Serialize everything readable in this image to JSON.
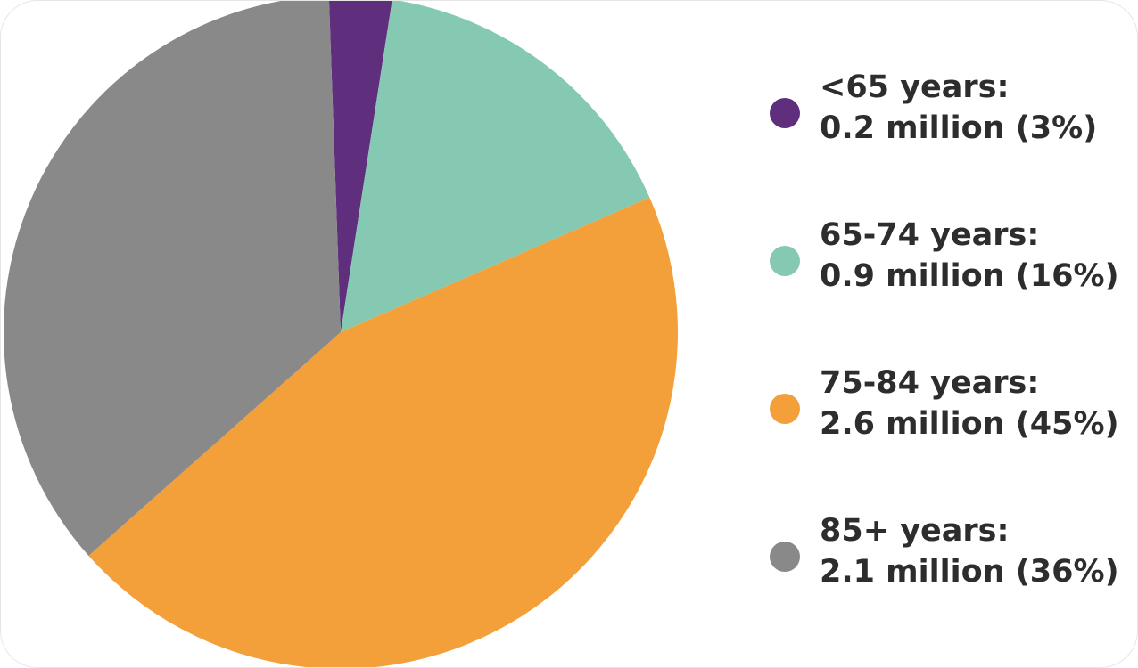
{
  "chart_data": {
    "type": "pie",
    "title": "",
    "start_angle_deg": -2,
    "direction": "clockwise",
    "slices": [
      {
        "label": "<65 years:",
        "detail": "0.2 million (3%)",
        "value": 0.2,
        "percent": 3,
        "color": "#5f2f7d"
      },
      {
        "label": "65-74 years:",
        "detail": "0.9 million (16%)",
        "value": 0.9,
        "percent": 16,
        "color": "#86c9b3"
      },
      {
        "label": "75-84 years:",
        "detail": "2.6 million (45%)",
        "value": 2.6,
        "percent": 45,
        "color": "#f3a03a"
      },
      {
        "label": "85+ years:",
        "detail": "2.1 million (36%)",
        "value": 2.1,
        "percent": 36,
        "color": "#898989"
      }
    ],
    "legend_position": "right"
  }
}
